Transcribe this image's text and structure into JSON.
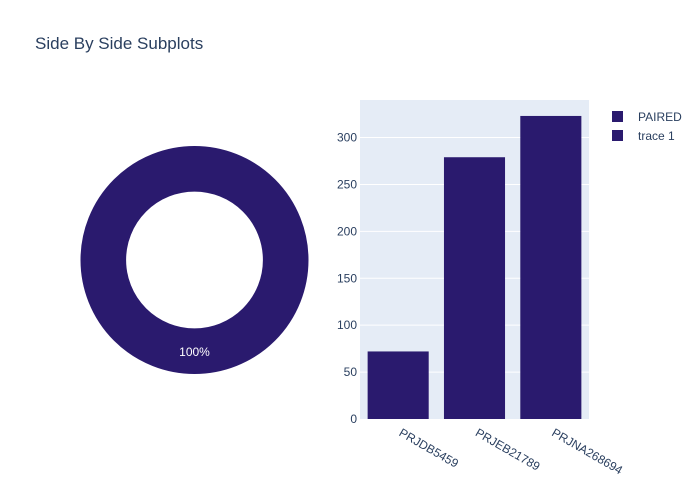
{
  "title": "Side By Side Subplots",
  "colors": {
    "series": "#2a1a6e",
    "plot_bg": "#e5ecf6",
    "text": "#2a3f5f"
  },
  "chart_data": [
    {
      "type": "pie",
      "hole": 0.6,
      "labels": [
        "PAIRED"
      ],
      "values": [
        100
      ],
      "slice_labels": [
        "100%"
      ]
    },
    {
      "type": "bar",
      "name": "trace 1",
      "categories": [
        "PRJDB5459",
        "PRJEB21789",
        "PRJNA268694"
      ],
      "values": [
        72,
        279,
        323
      ],
      "ylim": [
        0,
        340
      ],
      "yticks": [
        0,
        50,
        100,
        150,
        200,
        250,
        300
      ],
      "grid": true
    }
  ],
  "legend": {
    "position": "top-right",
    "items": [
      "PAIRED",
      "trace 1"
    ]
  }
}
